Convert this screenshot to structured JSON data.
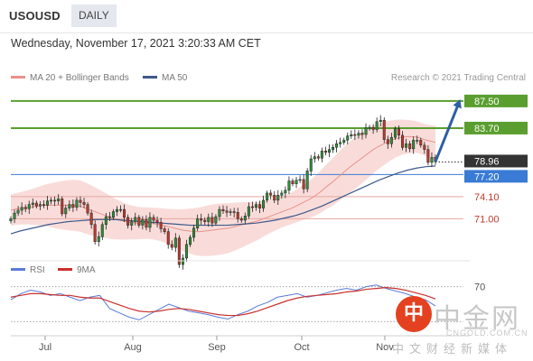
{
  "header": {
    "symbol": "USOUSD",
    "timeframe": "DAILY",
    "datetime": "Wednesday, November 17, 2021 3:20:33 AM CET"
  },
  "legend": {
    "items": [
      {
        "label": "MA 20 + Bollinger Bands",
        "color": "#e8918c"
      },
      {
        "label": "MA 50",
        "color": "#3d5a8a"
      }
    ],
    "credit": "Research © 2021 Trading Central"
  },
  "rsi_legend": {
    "items": [
      {
        "label": "RSI",
        "color": "#5b7bd6"
      },
      {
        "label": "9MA",
        "color": "#c9302c"
      }
    ],
    "level": "70"
  },
  "colors": {
    "up": "#2f8f3a",
    "down": "#c0392b",
    "wick": "#222222",
    "resistance": "#5a9e2f",
    "pivot": "#3a7bd5",
    "support": "#e8a7a0",
    "support_text": "#c0392b",
    "price_tag": "#333333",
    "band_fill": "#f8d8d6",
    "arrow": "#2e5fa3"
  },
  "watermark": {
    "logo_text": "中",
    "name": "中金网",
    "url": "CNGOLD.COM.CN",
    "sub": "中文财经新媒体"
  },
  "chart_data": {
    "type": "candlestick",
    "x_ticks": [
      "Jul",
      "Aug",
      "Sep",
      "Oct",
      "Nov"
    ],
    "ylim": [
      66,
      89
    ],
    "current_price": 78.96,
    "resistance_levels": [
      87.5,
      83.7
    ],
    "pivot": 77.2,
    "support_levels": [
      74.1,
      71.0
    ],
    "labels": {
      "r2": "87.50",
      "r1": "83.70",
      "price": "78.96",
      "pivot": "77.20",
      "s1": "74.10",
      "s2": "71.00"
    },
    "closes": [
      71.0,
      71.8,
      72.2,
      72.6,
      72.4,
      73.0,
      73.2,
      72.8,
      73.0,
      72.9,
      73.5,
      73.6,
      73.5,
      73.8,
      71.7,
      72.5,
      73.0,
      72.6,
      73.6,
      73.3,
      73.0,
      71.8,
      70.2,
      67.8,
      68.5,
      70.2,
      71.3,
      71.2,
      72.0,
      72.3,
      72.3,
      71.2,
      70.1,
      70.6,
      71.2,
      70.1,
      70.9,
      69.8,
      71.2,
      70.8,
      70.5,
      69.6,
      69.2,
      67.4,
      67.0,
      68.3,
      64.6,
      65.5,
      67.4,
      68.4,
      69.7,
      71.0,
      70.8,
      70.6,
      71.2,
      70.4,
      71.3,
      72.3,
      72.1,
      71.9,
      72.0,
      71.9,
      71.0,
      70.8,
      71.4,
      72.7,
      72.6,
      73.0,
      72.5,
      73.6,
      74.6,
      74.3,
      73.6,
      74.3,
      74.6,
      75.0,
      76.3,
      75.9,
      76.4,
      76.5,
      75.2,
      77.7,
      79.4,
      79.7,
      79.5,
      80.5,
      80.3,
      80.7,
      81.0,
      81.5,
      81.7,
      82.0,
      82.6,
      82.8,
      82.7,
      83.0,
      82.8,
      83.7,
      83.8,
      83.5,
      84.6,
      84.8,
      82.1,
      81.5,
      82.4,
      83.6,
      82.7,
      81.0,
      81.5,
      80.8,
      82.0,
      82.0,
      81.3,
      80.7,
      78.9,
      79.6,
      79.0
    ],
    "ma20": [
      72.2,
      72.4,
      72.5,
      72.6,
      72.7,
      72.8,
      72.9,
      72.9,
      72.9,
      72.9,
      72.9,
      72.9,
      72.8,
      72.5,
      72.2,
      71.9,
      71.6,
      71.3,
      71.0,
      70.8,
      70.6,
      70.5,
      70.4,
      70.4,
      70.4,
      70.3,
      70.2,
      70.0,
      69.8,
      69.6,
      69.4,
      69.3,
      69.2,
      69.2,
      69.3,
      69.4,
      69.5,
      69.6,
      69.7,
      69.9,
      70.1,
      70.3,
      70.5,
      70.7,
      71.0,
      71.3,
      71.6,
      71.9,
      72.2,
      72.5,
      72.9,
      73.3,
      73.7,
      74.2,
      74.8,
      75.5,
      76.1,
      76.8,
      77.5,
      78.2,
      78.8,
      79.4,
      80.0,
      80.6,
      81.1,
      81.5,
      81.9,
      82.2,
      82.4,
      82.5,
      82.5,
      82.4,
      82.1,
      81.9,
      81.7
    ],
    "ma50": [
      69.5,
      69.9,
      70.2,
      70.5,
      70.8,
      71.0,
      71.2,
      71.3,
      71.4,
      71.5,
      71.5,
      71.5,
      71.4,
      71.3,
      71.2,
      71.1,
      71.0,
      70.9,
      70.8,
      70.7,
      70.7,
      70.7,
      70.7,
      70.7,
      70.8,
      70.9,
      71.0,
      71.2,
      71.4,
      71.7,
      72.0,
      72.4,
      72.9,
      73.4,
      74.0,
      74.6,
      75.2,
      75.8,
      76.4,
      77.0,
      77.5,
      78.0,
      78.4,
      78.7,
      78.9,
      79.0
    ],
    "projection": {
      "from": 79.0,
      "to": 87.5
    },
    "rsi": [
      55,
      62,
      66,
      64,
      60,
      62,
      58,
      54,
      58,
      60,
      45,
      40,
      35,
      32,
      38,
      44,
      50,
      46,
      42,
      40,
      38,
      35,
      33,
      38,
      42,
      48,
      52,
      58,
      60,
      62,
      58,
      60,
      63,
      66,
      68,
      66,
      70,
      72,
      68,
      65,
      62,
      58,
      55,
      48
    ],
    "rsi_ma": [
      58,
      60,
      62,
      62,
      61,
      60,
      60,
      58,
      57,
      57,
      53,
      49,
      45,
      42,
      41,
      42,
      44,
      45,
      44,
      42,
      40,
      38,
      37,
      37,
      39,
      42,
      46,
      50,
      54,
      57,
      59,
      60,
      61,
      62,
      64,
      65,
      67,
      68,
      69,
      68,
      66,
      63,
      60,
      56
    ],
    "rsi_ylim": [
      20,
      80
    ],
    "rsi_level": 70
  }
}
